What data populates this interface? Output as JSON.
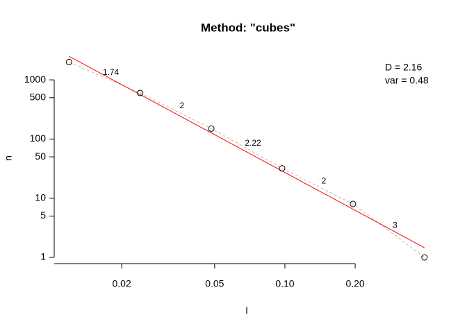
{
  "chart_data": {
    "type": "scatter",
    "title": "Method: \"cubes\"",
    "x_label": "l",
    "y_label": "n",
    "x": [
      0.0119,
      0.024,
      0.0484,
      0.0973,
      0.1957,
      0.396
    ],
    "values": [
      2000,
      600,
      150,
      32,
      8,
      1
    ],
    "slope_labels": [
      "1.74",
      "2",
      "2.22",
      "2",
      "3"
    ],
    "fit_line": {
      "color": "#ff0000",
      "x": [
        0.0119,
        0.396
      ],
      "values": [
        2500,
        1.46
      ]
    },
    "connector_color": "#bbbbbb",
    "annotations": [
      "D = 2.16",
      "var = 0.48"
    ],
    "log_x": true,
    "log_y": true,
    "xlim": [
      0.01028,
      0.458
    ],
    "ylim": [
      0.785,
      2723
    ],
    "xticks": [
      0.02,
      0.05,
      {
        "value": 0.1,
        "label": "0.10"
      },
      {
        "value": 0.2,
        "label": "0.20"
      }
    ],
    "yticks": [
      1,
      5,
      10,
      50,
      100,
      500,
      1000
    ]
  }
}
